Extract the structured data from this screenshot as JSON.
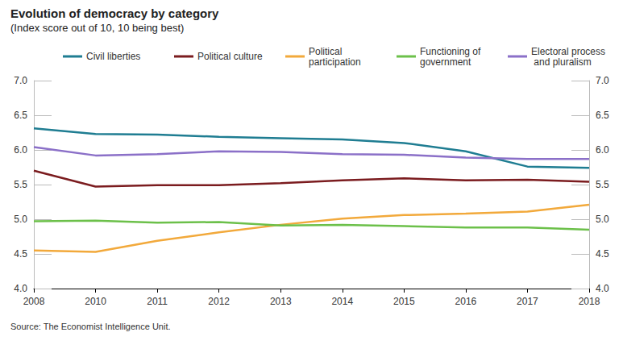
{
  "chart_data": {
    "type": "line",
    "title": "Evolution of democracy by category",
    "subtitle": "(Index score out of 10, 10 being best)",
    "source": "Source: The Economist Intelligence Unit.",
    "categories": [
      "2008",
      "2010",
      "2011",
      "2012",
      "2013",
      "2014",
      "2015",
      "2016",
      "2017",
      "2018"
    ],
    "series": [
      {
        "name": "Civil liberties",
        "color": "#1f7d92",
        "values": [
          6.31,
          6.23,
          6.22,
          6.19,
          6.17,
          6.15,
          6.1,
          5.98,
          5.76,
          5.74
        ]
      },
      {
        "name": "Political culture",
        "color": "#7b1c1f",
        "values": [
          5.7,
          5.47,
          5.49,
          5.49,
          5.52,
          5.56,
          5.59,
          5.56,
          5.57,
          5.54
        ]
      },
      {
        "name": "Political participation",
        "color": "#f2a93b",
        "values": [
          4.55,
          4.53,
          4.69,
          4.81,
          4.92,
          5.01,
          5.06,
          5.08,
          5.11,
          5.21
        ]
      },
      {
        "name": "Functioning of government",
        "color": "#6cc04a",
        "values": [
          4.97,
          4.98,
          4.95,
          4.96,
          4.91,
          4.92,
          4.9,
          4.88,
          4.88,
          4.85
        ]
      },
      {
        "name": "Electoral process and pluralism",
        "color": "#8b70c8",
        "values": [
          6.04,
          5.92,
          5.94,
          5.98,
          5.97,
          5.94,
          5.93,
          5.89,
          5.87,
          5.87
        ]
      }
    ],
    "ylim": [
      4.0,
      7.0
    ],
    "yticks": [
      {
        "value": 4.0,
        "label": "4.0"
      },
      {
        "value": 4.5,
        "label": "4.5"
      },
      {
        "value": 5.0,
        "label": "5.0"
      },
      {
        "value": 5.5,
        "label": "5.5"
      },
      {
        "value": 6.0,
        "label": "6.0"
      },
      {
        "value": 6.5,
        "label": "6.5"
      },
      {
        "value": 7.0,
        "label": "7.0"
      }
    ],
    "y2lim": [
      4.0,
      7.0
    ],
    "y2ticks": [
      {
        "value": 4.0,
        "label": "4.0"
      },
      {
        "value": 4.5,
        "label": "4.5"
      },
      {
        "value": 5.0,
        "label": "5.0"
      },
      {
        "value": 5.5,
        "label": "5.5"
      },
      {
        "value": 6.0,
        "label": "6.0"
      },
      {
        "value": 6.5,
        "label": "6.5"
      },
      {
        "value": 7.0,
        "label": "7.0"
      }
    ],
    "grid": false,
    "legend": "top-right"
  }
}
